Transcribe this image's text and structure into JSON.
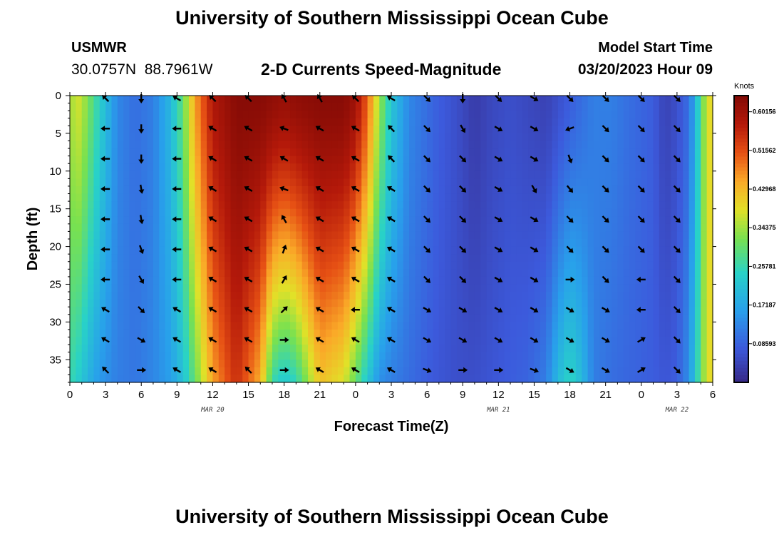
{
  "header": {
    "title": "University of Southern Mississippi Ocean Cube",
    "station": "USMWR",
    "coords": "30.0757N  88.7961W",
    "subtitle": "2-D Currents Speed-Magnitude",
    "model_label": "Model Start Time",
    "model_time": "03/20/2023 Hour 09"
  },
  "footer": {
    "title": "University of Southern Mississippi Ocean Cube"
  },
  "chart_data": {
    "type": "heatmap",
    "title": "2-D Currents Speed-Magnitude",
    "xlabel": "Forecast Time(Z)",
    "ylabel": "Depth (ft)",
    "x_range_hours": [
      0,
      54
    ],
    "ylim": [
      38,
      0
    ],
    "x_tick_labels": [
      "0",
      "3",
      "6",
      "9",
      "12",
      "15",
      "18",
      "21",
      "0",
      "3",
      "6",
      "9",
      "12",
      "15",
      "18",
      "21",
      "0",
      "3",
      "6"
    ],
    "y_ticks": [
      0,
      5,
      10,
      15,
      20,
      25,
      30,
      35
    ],
    "date_labels": [
      {
        "label": "MAR 20",
        "hour": 12
      },
      {
        "label": "MAR 21",
        "hour": 36
      },
      {
        "label": "MAR 22",
        "hour": 51
      }
    ],
    "colorbar": {
      "units": "Knots",
      "min": 0,
      "max": 0.6375,
      "tick_labels": [
        "0.60156",
        "0.51562",
        "0.42968",
        "0.34375",
        "0.25781",
        "0.17187",
        "0.08593"
      ],
      "tick_values": [
        0.60156,
        0.51562,
        0.42968,
        0.34375,
        0.25781,
        0.17187,
        0.08593
      ]
    },
    "speed_profile_knots": {
      "hours": [
        0,
        0.5,
        1,
        1.5,
        2.5,
        4,
        5.5,
        7,
        8.5,
        9.5,
        10.5,
        12,
        14,
        16,
        17,
        18,
        19,
        21,
        23,
        24,
        25,
        26,
        27,
        28.5,
        30,
        31,
        32.5,
        34,
        35.5,
        37,
        38.5,
        40,
        41,
        42,
        43,
        44,
        45.5,
        47,
        49,
        50,
        51,
        52,
        52.5,
        53,
        53.5,
        54
      ],
      "surface": [
        0.33,
        0.38,
        0.36,
        0.32,
        0.24,
        0.13,
        0.1,
        0.12,
        0.2,
        0.3,
        0.45,
        0.58,
        0.63,
        0.63,
        0.62,
        0.61,
        0.62,
        0.63,
        0.63,
        0.6,
        0.5,
        0.34,
        0.22,
        0.13,
        0.1,
        0.08,
        0.06,
        0.03,
        0.05,
        0.06,
        0.05,
        0.04,
        0.06,
        0.08,
        0.1,
        0.12,
        0.12,
        0.1,
        0.08,
        0.04,
        0.06,
        0.1,
        0.18,
        0.28,
        0.38,
        0.4
      ],
      "bottom": [
        0.26,
        0.24,
        0.22,
        0.19,
        0.15,
        0.12,
        0.11,
        0.13,
        0.16,
        0.21,
        0.3,
        0.45,
        0.55,
        0.44,
        0.26,
        0.22,
        0.25,
        0.42,
        0.38,
        0.3,
        0.22,
        0.14,
        0.12,
        0.1,
        0.08,
        0.07,
        0.06,
        0.06,
        0.07,
        0.08,
        0.09,
        0.12,
        0.2,
        0.25,
        0.2,
        0.12,
        0.1,
        0.09,
        0.08,
        0.07,
        0.08,
        0.14,
        0.22,
        0.3,
        0.38,
        0.4
      ]
    },
    "vectors": {
      "hours": [
        3,
        6,
        9,
        12,
        15,
        18,
        21,
        24,
        27,
        30,
        33,
        36,
        39,
        42,
        45,
        48,
        51
      ],
      "depths_ft": [
        0,
        4,
        8,
        12,
        16,
        20,
        24,
        28,
        32,
        36
      ],
      "direction_deg": [
        [
          315,
          180,
          300,
          315,
          315,
          330,
          330,
          315,
          300,
          135,
          180,
          135,
          120,
          135,
          135,
          135,
          135
        ],
        [
          270,
          180,
          270,
          300,
          300,
          290,
          300,
          300,
          315,
          135,
          150,
          120,
          120,
          250,
          135,
          135,
          135
        ],
        [
          270,
          180,
          270,
          300,
          300,
          300,
          300,
          300,
          315,
          135,
          135,
          120,
          120,
          160,
          135,
          135,
          135
        ],
        [
          270,
          170,
          270,
          300,
          300,
          290,
          300,
          300,
          300,
          135,
          135,
          120,
          150,
          140,
          135,
          135,
          135
        ],
        [
          270,
          170,
          270,
          300,
          300,
          330,
          300,
          300,
          300,
          135,
          135,
          120,
          120,
          135,
          135,
          135,
          135
        ],
        [
          270,
          160,
          270,
          300,
          300,
          20,
          300,
          300,
          300,
          135,
          135,
          120,
          120,
          135,
          135,
          135,
          135
        ],
        [
          270,
          150,
          270,
          300,
          300,
          30,
          300,
          300,
          300,
          135,
          135,
          120,
          120,
          90,
          135,
          270,
          135
        ],
        [
          300,
          135,
          300,
          300,
          300,
          45,
          300,
          270,
          300,
          120,
          120,
          120,
          120,
          120,
          120,
          270,
          135
        ],
        [
          300,
          120,
          300,
          300,
          300,
          90,
          300,
          300,
          300,
          120,
          120,
          120,
          120,
          120,
          120,
          60,
          135
        ],
        [
          315,
          90,
          300,
          300,
          315,
          90,
          300,
          300,
          300,
          110,
          90,
          90,
          110,
          120,
          120,
          60,
          135
        ]
      ]
    }
  }
}
